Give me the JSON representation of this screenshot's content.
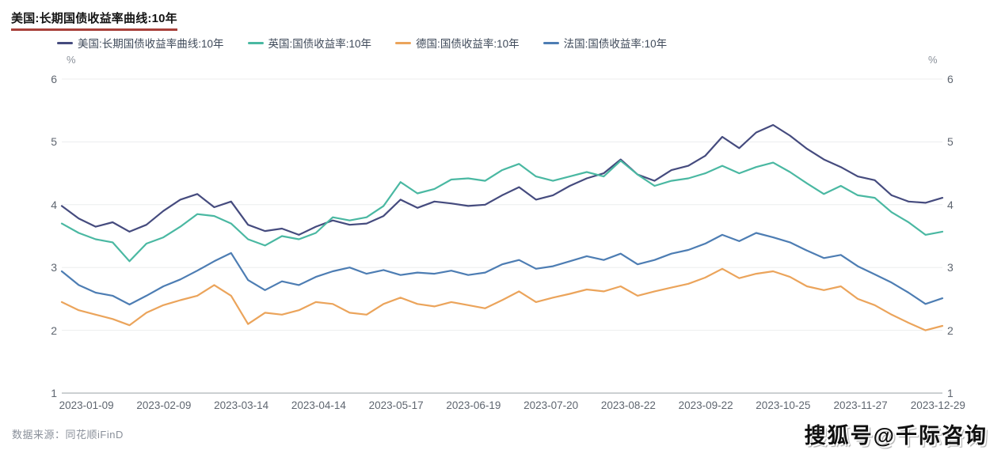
{
  "title": "美国:长期国债收益率曲线:10年",
  "axis": {
    "unit_left": "%",
    "unit_right": "%",
    "y_ticks": [
      6,
      5,
      4,
      3,
      2,
      1
    ]
  },
  "footer": {
    "source": "数据来源：同花顺iFinD",
    "watermark": "搜狐号@千际咨询"
  },
  "colors": {
    "us": "#454b7e",
    "uk": "#4ab8a2",
    "germany": "#eba45b",
    "france": "#4d7db3",
    "grid": "#ecedee",
    "axis_line": "#9aa0a6"
  },
  "chart_data": {
    "type": "line",
    "title": "美国:长期国债收益率曲线:10年",
    "y_unit": "%",
    "ylim": [
      1,
      6
    ],
    "y_ticks": [
      1,
      2,
      3,
      4,
      5,
      6
    ],
    "grid": true,
    "legend_position": "top",
    "sampling": "weekly (Jan 2023 – Dec 2023), values in percent",
    "x_tick_labels": [
      "2023-01-09",
      "2023-02-09",
      "2023-03-14",
      "2023-04-14",
      "2023-05-17",
      "2023-06-19",
      "2023-07-20",
      "2023-08-22",
      "2023-09-22",
      "2023-10-25",
      "2023-11-27",
      "2023-12-29"
    ],
    "series": [
      {
        "name": "美国:长期国债收益率曲线:10年",
        "color": "#454b7e",
        "values": [
          3.98,
          3.78,
          3.65,
          3.72,
          3.57,
          3.68,
          3.9,
          4.08,
          4.17,
          3.96,
          4.05,
          3.68,
          3.58,
          3.62,
          3.52,
          3.65,
          3.75,
          3.68,
          3.7,
          3.82,
          4.08,
          3.95,
          4.05,
          4.02,
          3.98,
          4.0,
          4.15,
          4.28,
          4.08,
          4.15,
          4.3,
          4.42,
          4.5,
          4.72,
          4.48,
          4.38,
          4.55,
          4.62,
          4.78,
          5.08,
          4.9,
          5.15,
          5.27,
          5.1,
          4.89,
          4.72,
          4.6,
          4.45,
          4.39,
          4.15,
          4.05,
          4.03,
          4.11
        ]
      },
      {
        "name": "英国:国债收益率:10年",
        "color": "#4ab8a2",
        "values": [
          3.7,
          3.55,
          3.45,
          3.4,
          3.1,
          3.38,
          3.48,
          3.65,
          3.85,
          3.82,
          3.7,
          3.45,
          3.35,
          3.5,
          3.45,
          3.55,
          3.8,
          3.75,
          3.8,
          3.98,
          4.36,
          4.18,
          4.25,
          4.4,
          4.42,
          4.38,
          4.55,
          4.65,
          4.45,
          4.38,
          4.45,
          4.52,
          4.45,
          4.7,
          4.48,
          4.3,
          4.38,
          4.42,
          4.5,
          4.62,
          4.5,
          4.6,
          4.67,
          4.52,
          4.34,
          4.17,
          4.3,
          4.15,
          4.11,
          3.88,
          3.72,
          3.52,
          3.57
        ]
      },
      {
        "name": "德国:国债收益率:10年",
        "color": "#eba45b",
        "values": [
          2.45,
          2.32,
          2.25,
          2.18,
          2.08,
          2.28,
          2.4,
          2.48,
          2.55,
          2.72,
          2.55,
          2.1,
          2.28,
          2.25,
          2.32,
          2.45,
          2.42,
          2.28,
          2.25,
          2.42,
          2.52,
          2.42,
          2.38,
          2.45,
          2.4,
          2.35,
          2.48,
          2.62,
          2.45,
          2.52,
          2.58,
          2.65,
          2.62,
          2.7,
          2.55,
          2.62,
          2.68,
          2.74,
          2.84,
          2.98,
          2.83,
          2.9,
          2.94,
          2.85,
          2.7,
          2.64,
          2.7,
          2.5,
          2.4,
          2.25,
          2.12,
          2.0,
          2.07
        ]
      },
      {
        "name": "法国:国债收益率:10年",
        "color": "#4d7db3",
        "values": [
          2.94,
          2.72,
          2.6,
          2.55,
          2.41,
          2.55,
          2.7,
          2.81,
          2.95,
          3.1,
          3.23,
          2.8,
          2.64,
          2.78,
          2.72,
          2.85,
          2.94,
          3.0,
          2.9,
          2.96,
          2.88,
          2.92,
          2.9,
          2.95,
          2.88,
          2.92,
          3.05,
          3.12,
          2.98,
          3.02,
          3.1,
          3.18,
          3.12,
          3.22,
          3.05,
          3.12,
          3.22,
          3.28,
          3.38,
          3.52,
          3.42,
          3.55,
          3.48,
          3.4,
          3.27,
          3.15,
          3.2,
          3.02,
          2.89,
          2.76,
          2.6,
          2.42,
          2.51
        ]
      }
    ]
  }
}
